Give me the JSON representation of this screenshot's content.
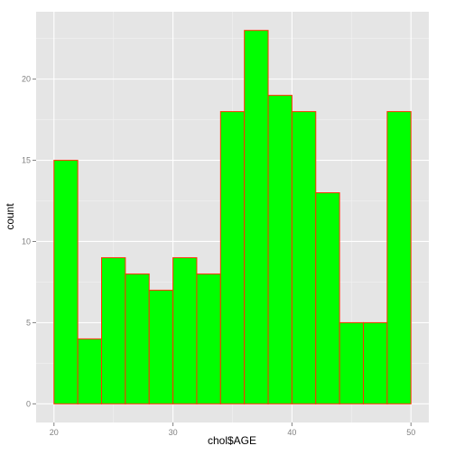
{
  "chart_data": {
    "type": "bar",
    "xlabel": "chol$AGE",
    "ylabel": "count",
    "xlim": [
      18.5,
      51.5
    ],
    "ylim": [
      -1.15,
      24.15
    ],
    "x_ticks": [
      20,
      30,
      40,
      50
    ],
    "y_ticks": [
      0,
      5,
      10,
      15,
      20
    ],
    "bins": [
      {
        "x0": 20,
        "x1": 22,
        "count": 15
      },
      {
        "x0": 22,
        "x1": 24,
        "count": 4
      },
      {
        "x0": 24,
        "x1": 26,
        "count": 9
      },
      {
        "x0": 26,
        "x1": 28,
        "count": 8
      },
      {
        "x0": 28,
        "x1": 30,
        "count": 7
      },
      {
        "x0": 30,
        "x1": 32,
        "count": 9
      },
      {
        "x0": 32,
        "x1": 34,
        "count": 8
      },
      {
        "x0": 34,
        "x1": 36,
        "count": 18
      },
      {
        "x0": 36,
        "x1": 38,
        "count": 23
      },
      {
        "x0": 38,
        "x1": 40,
        "count": 19
      },
      {
        "x0": 40,
        "x1": 42,
        "count": 18
      },
      {
        "x0": 42,
        "x1": 44,
        "count": 13
      },
      {
        "x0": 44,
        "x1": 46,
        "count": 5
      },
      {
        "x0": 46,
        "x1": 48,
        "count": 5
      },
      {
        "x0": 48,
        "x1": 50,
        "count": 18
      }
    ],
    "fill_color": "#00ff00",
    "stroke_color": "#ff3300",
    "panel_color": "#e5e5e5",
    "grid": true
  }
}
